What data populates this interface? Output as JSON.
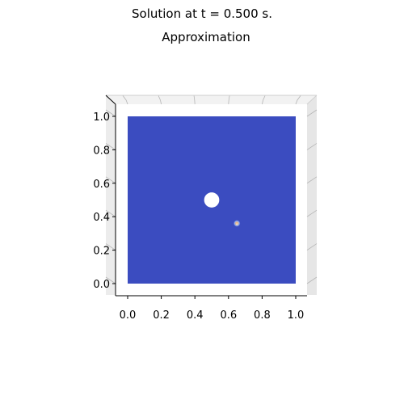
{
  "figure": {
    "suptitle": "Solution at t = 0.500 s.",
    "title": "Approximation"
  },
  "chart_data": {
    "type": "heatmap",
    "projection": "3d surface viewed from top",
    "title": "Approximation",
    "xlabel": "",
    "ylabel": "",
    "xlim": [
      0.0,
      1.0
    ],
    "ylim": [
      0.0,
      1.0
    ],
    "xticks": [
      "0.0",
      "0.2",
      "0.4",
      "0.6",
      "0.8",
      "1.0"
    ],
    "yticks": [
      "0.0",
      "0.2",
      "0.4",
      "0.6",
      "0.8",
      "1.0"
    ],
    "colormap": "coolwarm",
    "surface_color": "#3b4cc0",
    "hole": {
      "cx": 0.5,
      "cy": 0.5,
      "r": 0.045
    },
    "hotspot": {
      "x": 0.65,
      "y": 0.36,
      "r": 0.02
    },
    "grid": true,
    "legend": "none"
  }
}
